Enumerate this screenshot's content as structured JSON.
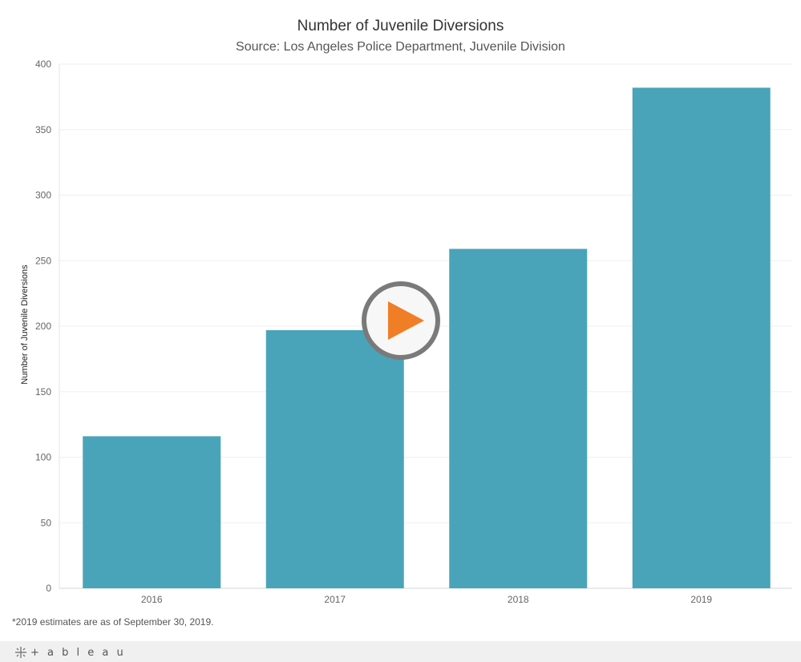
{
  "header": {
    "title": "Number of Juvenile Diversions",
    "subtitle": "Source: Los Angeles Police Department, Juvenile Division"
  },
  "chart_data": {
    "type": "bar",
    "title": "Number of Juvenile Diversions",
    "subtitle": "Source: Los Angeles Police Department, Juvenile Division",
    "xlabel": "",
    "ylabel": "Number of Juvenile Diversions",
    "categories": [
      "2016",
      "2017",
      "2018",
      "2019"
    ],
    "values": [
      116,
      197,
      259,
      382
    ],
    "ylim": [
      0,
      400
    ],
    "yticks": [
      0,
      50,
      100,
      150,
      200,
      250,
      300,
      350,
      400
    ],
    "grid": true,
    "bar_color": "#4aa4b9"
  },
  "footnote": "*2019 estimates are as of September 30, 2019.",
  "footer": {
    "brand": "+ a b l e a u"
  },
  "colors": {
    "play_accent": "#f07e26",
    "play_ring": "#7a7a7a"
  }
}
